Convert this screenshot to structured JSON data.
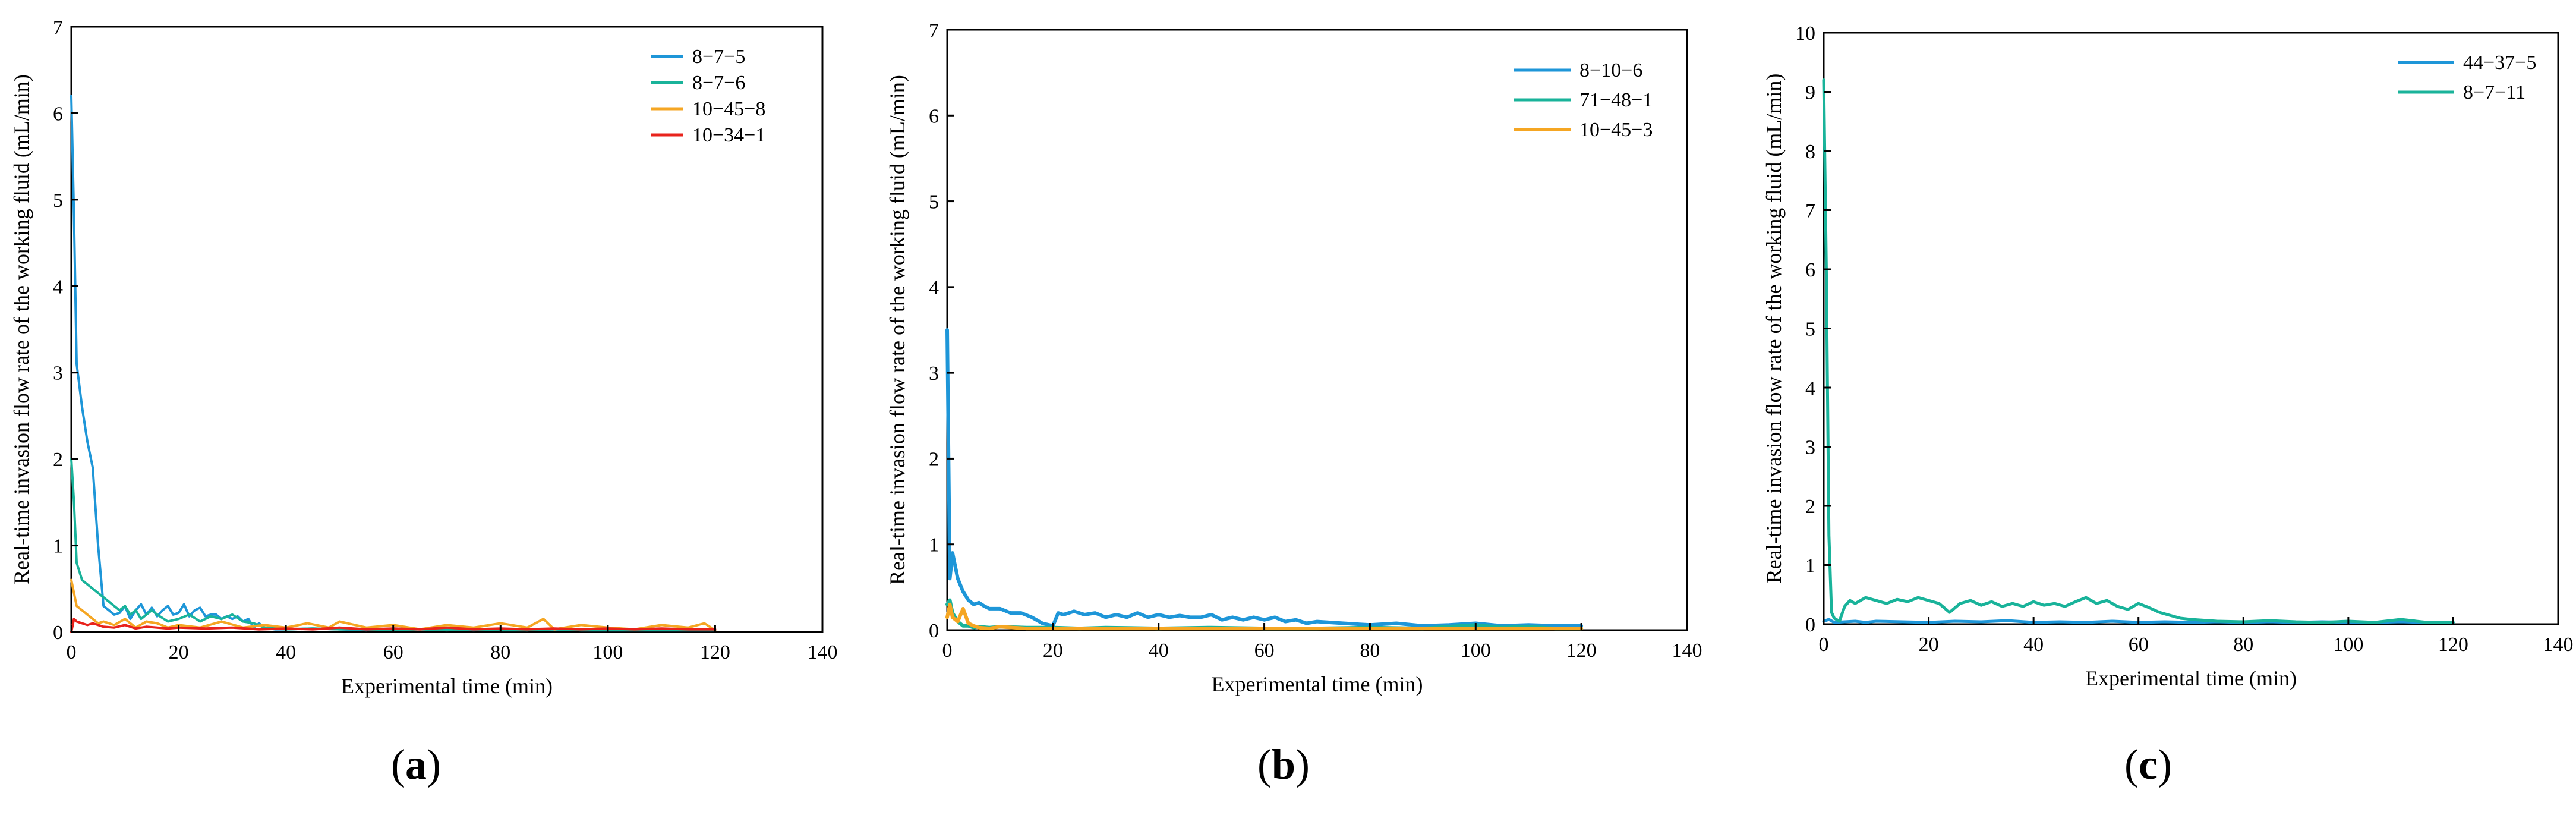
{
  "chart_data": [
    {
      "type": "line",
      "panel": "a",
      "panel_label": "a",
      "xlabel": "Experimental time (min)",
      "ylabel": "Real-time invasion flow rate of the working fluid (mL/min)",
      "xlim": [
        0,
        140
      ],
      "ylim": [
        0,
        7
      ],
      "xticks": [
        0,
        20,
        40,
        60,
        80,
        100,
        120,
        140
      ],
      "yticks": [
        0,
        1,
        2,
        3,
        4,
        5,
        6,
        7
      ],
      "legend_position": "top-right",
      "series": [
        {
          "name": "8−7−5",
          "color": "#1E96D8",
          "x": [
            0,
            0.5,
            1,
            2,
            3,
            4,
            5,
            6,
            7,
            8,
            9,
            10,
            11,
            12,
            13,
            14,
            15,
            16,
            17,
            18,
            19,
            20,
            21,
            22,
            23,
            24,
            25,
            26,
            27,
            28,
            29,
            30,
            31,
            32,
            33,
            34,
            35,
            36,
            38,
            40,
            45,
            50,
            55,
            60,
            65,
            70,
            75,
            80,
            85,
            90,
            95,
            100,
            105,
            110,
            115,
            120
          ],
          "y": [
            6.2,
            4.8,
            3.1,
            2.6,
            2.2,
            1.9,
            1.0,
            0.3,
            0.25,
            0.2,
            0.22,
            0.3,
            0.15,
            0.25,
            0.32,
            0.2,
            0.28,
            0.18,
            0.25,
            0.3,
            0.2,
            0.22,
            0.32,
            0.18,
            0.25,
            0.28,
            0.18,
            0.2,
            0.2,
            0.15,
            0.18,
            0.15,
            0.18,
            0.12,
            0.15,
            0.05,
            0.1,
            0.05,
            0.03,
            0.03,
            0.04,
            0.03,
            0.02,
            0.04,
            0.03,
            0.03,
            0.02,
            0.03,
            0.02,
            0.03,
            0.02,
            0.02,
            0.02,
            0.02,
            0.02,
            0.02
          ]
        },
        {
          "name": "8−7−6",
          "color": "#19B39A",
          "x": [
            0,
            0.5,
            1,
            2,
            3,
            4,
            5,
            6,
            7,
            8,
            9,
            10,
            11,
            12,
            13,
            14,
            15,
            16,
            18,
            20,
            22,
            24,
            26,
            28,
            30,
            32,
            34,
            36,
            40,
            45,
            50,
            55,
            60,
            65,
            70,
            75,
            80,
            85,
            90,
            95,
            100,
            105,
            110,
            115,
            120
          ],
          "y": [
            2.0,
            1.5,
            0.8,
            0.6,
            0.55,
            0.5,
            0.45,
            0.4,
            0.35,
            0.3,
            0.25,
            0.3,
            0.2,
            0.25,
            0.15,
            0.2,
            0.25,
            0.2,
            0.12,
            0.15,
            0.2,
            0.12,
            0.18,
            0.15,
            0.2,
            0.12,
            0.1,
            0.05,
            0.03,
            0.04,
            0.03,
            0.03,
            0.02,
            0.03,
            0.02,
            0.03,
            0.02,
            0.02,
            0.03,
            0.02,
            0.02,
            0.02,
            0.02,
            0.02,
            0.02
          ]
        },
        {
          "name": "10−45−8",
          "color": "#F5A623",
          "x": [
            0,
            0.5,
            1,
            2,
            3,
            4,
            5,
            6,
            8,
            10,
            12,
            14,
            16,
            18,
            20,
            24,
            28,
            32,
            36,
            40,
            44,
            48,
            50,
            55,
            60,
            65,
            70,
            75,
            80,
            85,
            88,
            90,
            95,
            100,
            105,
            110,
            115,
            118,
            120
          ],
          "y": [
            0.6,
            0.45,
            0.3,
            0.25,
            0.2,
            0.15,
            0.1,
            0.12,
            0.08,
            0.15,
            0.05,
            0.12,
            0.1,
            0.05,
            0.08,
            0.05,
            0.12,
            0.05,
            0.08,
            0.05,
            0.1,
            0.05,
            0.12,
            0.05,
            0.08,
            0.03,
            0.08,
            0.05,
            0.1,
            0.05,
            0.15,
            0.03,
            0.08,
            0.05,
            0.03,
            0.08,
            0.05,
            0.1,
            0.02
          ]
        },
        {
          "name": "10−34−1",
          "color": "#E8231C",
          "x": [
            0,
            0.5,
            1,
            2,
            3,
            4,
            5,
            6,
            8,
            10,
            12,
            14,
            16,
            18,
            20,
            25,
            30,
            35,
            40,
            45,
            50,
            55,
            60,
            65,
            70,
            75,
            80,
            85,
            90,
            95,
            100,
            105,
            110,
            115,
            120
          ],
          "y": [
            0.0,
            0.15,
            0.12,
            0.1,
            0.08,
            0.1,
            0.08,
            0.06,
            0.05,
            0.08,
            0.04,
            0.06,
            0.05,
            0.04,
            0.05,
            0.04,
            0.05,
            0.03,
            0.04,
            0.03,
            0.05,
            0.03,
            0.04,
            0.03,
            0.05,
            0.03,
            0.04,
            0.03,
            0.04,
            0.03,
            0.04,
            0.03,
            0.04,
            0.03,
            0.03
          ]
        }
      ]
    },
    {
      "type": "line",
      "panel": "b",
      "panel_label": "b",
      "xlabel": "Experimental time (min)",
      "ylabel": "Real-time invasion flow rate of the working fluid (mL/min)",
      "xlim": [
        0,
        140
      ],
      "ylim": [
        0,
        7
      ],
      "xticks": [
        0,
        20,
        40,
        60,
        80,
        100,
        120,
        140
      ],
      "yticks": [
        0,
        1,
        2,
        3,
        4,
        5,
        6,
        7
      ],
      "legend_position": "top-right",
      "series": [
        {
          "name": "8−10−6",
          "color": "#1E96D8",
          "x": [
            0,
            0.5,
            1,
            2,
            3,
            4,
            5,
            6,
            7,
            8,
            10,
            12,
            14,
            16,
            18,
            20,
            21,
            22,
            24,
            26,
            28,
            30,
            32,
            34,
            36,
            38,
            40,
            42,
            44,
            46,
            48,
            50,
            52,
            54,
            56,
            58,
            60,
            62,
            64,
            66,
            68,
            70,
            75,
            80,
            85,
            90,
            95,
            100,
            105,
            110,
            115,
            120
          ],
          "y": [
            3.5,
            0.6,
            0.9,
            0.6,
            0.45,
            0.35,
            0.3,
            0.32,
            0.28,
            0.25,
            0.25,
            0.2,
            0.2,
            0.15,
            0.08,
            0.05,
            0.2,
            0.18,
            0.22,
            0.18,
            0.2,
            0.15,
            0.18,
            0.15,
            0.2,
            0.15,
            0.18,
            0.15,
            0.17,
            0.15,
            0.15,
            0.18,
            0.12,
            0.15,
            0.12,
            0.15,
            0.12,
            0.15,
            0.1,
            0.12,
            0.08,
            0.1,
            0.08,
            0.06,
            0.08,
            0.05,
            0.06,
            0.08,
            0.05,
            0.06,
            0.05,
            0.05
          ]
        },
        {
          "name": "71−48−1",
          "color": "#19B39A",
          "x": [
            0,
            0.5,
            1,
            2,
            3,
            4,
            5,
            6,
            8,
            10,
            15,
            20,
            25,
            30,
            40,
            50,
            60,
            70,
            80,
            90,
            100,
            105,
            110,
            115,
            120
          ],
          "y": [
            0.3,
            0.35,
            0.2,
            0.1,
            0.05,
            0.05,
            0.03,
            0.04,
            0.03,
            0.04,
            0.03,
            0.03,
            0.02,
            0.03,
            0.02,
            0.03,
            0.02,
            0.02,
            0.03,
            0.02,
            0.06,
            0.03,
            0.04,
            0.02,
            0.02
          ]
        },
        {
          "name": "10−45−3",
          "color": "#F5A623",
          "x": [
            0,
            0.5,
            1,
            2,
            3,
            4,
            5,
            6,
            8,
            10,
            15,
            20,
            30,
            40,
            50,
            60,
            70,
            80,
            90,
            100,
            110,
            120
          ],
          "y": [
            0.15,
            0.3,
            0.15,
            0.1,
            0.25,
            0.08,
            0.05,
            0.03,
            0.02,
            0.04,
            0.02,
            0.02,
            0.02,
            0.02,
            0.02,
            0.02,
            0.02,
            0.02,
            0.02,
            0.02,
            0.02,
            0.02
          ]
        }
      ]
    },
    {
      "type": "line",
      "panel": "c",
      "panel_label": "c",
      "xlabel": "Experimental time (min)",
      "ylabel": "Real-time invasion flow rate of the working fluid (mL/min)",
      "xlim": [
        0,
        140
      ],
      "ylim": [
        0,
        10
      ],
      "xticks": [
        0,
        20,
        40,
        60,
        80,
        100,
        120,
        140
      ],
      "yticks": [
        0,
        1,
        2,
        3,
        4,
        5,
        6,
        7,
        8,
        9,
        10
      ],
      "legend_position": "top-right",
      "series": [
        {
          "name": "44−37−5",
          "color": "#1E96D8",
          "x": [
            0,
            1,
            2,
            4,
            6,
            8,
            10,
            15,
            20,
            25,
            30,
            35,
            40,
            45,
            50,
            55,
            60,
            65,
            70,
            75,
            80,
            85,
            90,
            95,
            100,
            105,
            110,
            115,
            120
          ],
          "y": [
            0.05,
            0.08,
            0.03,
            0.04,
            0.05,
            0.03,
            0.05,
            0.04,
            0.03,
            0.05,
            0.04,
            0.06,
            0.03,
            0.04,
            0.03,
            0.05,
            0.03,
            0.04,
            0.03,
            0.04,
            0.03,
            0.04,
            0.03,
            0.04,
            0.03,
            0.03,
            0.04,
            0.03,
            0.03
          ]
        },
        {
          "name": "8−7−11",
          "color": "#19B39A",
          "x": [
            0,
            0.5,
            1,
            1.5,
            2,
            3,
            4,
            5,
            6,
            8,
            10,
            12,
            14,
            16,
            18,
            20,
            22,
            24,
            26,
            28,
            30,
            32,
            34,
            36,
            38,
            40,
            42,
            44,
            46,
            48,
            50,
            52,
            54,
            56,
            58,
            60,
            62,
            64,
            66,
            68,
            70,
            75,
            80,
            85,
            90,
            95,
            100,
            105,
            110,
            115,
            120
          ],
          "y": [
            9.2,
            6.0,
            1.5,
            0.2,
            0.1,
            0.05,
            0.3,
            0.4,
            0.35,
            0.45,
            0.4,
            0.35,
            0.42,
            0.38,
            0.45,
            0.4,
            0.35,
            0.2,
            0.35,
            0.4,
            0.32,
            0.38,
            0.3,
            0.35,
            0.3,
            0.38,
            0.32,
            0.35,
            0.3,
            0.38,
            0.45,
            0.35,
            0.4,
            0.3,
            0.25,
            0.35,
            0.28,
            0.2,
            0.15,
            0.1,
            0.08,
            0.05,
            0.04,
            0.06,
            0.04,
            0.03,
            0.05,
            0.03,
            0.08,
            0.03,
            0.03
          ]
        }
      ]
    }
  ]
}
